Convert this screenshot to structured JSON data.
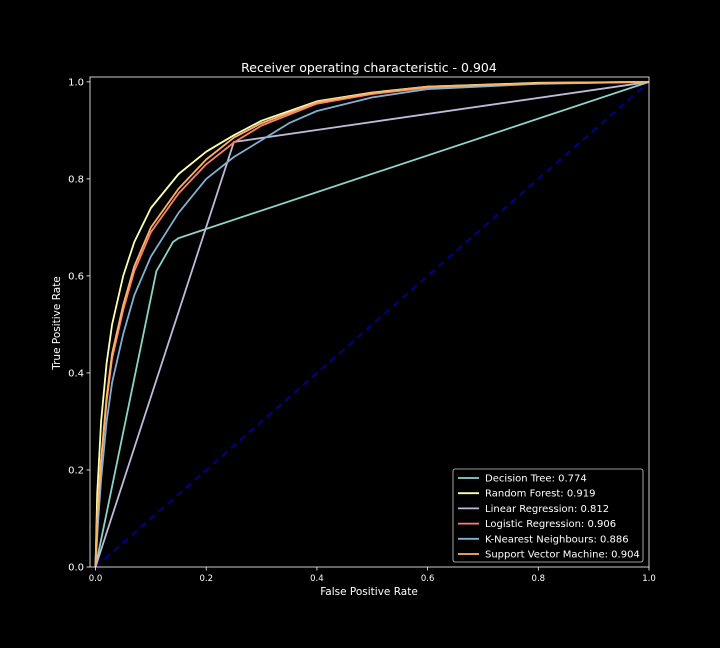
{
  "chart_data": {
    "type": "line",
    "title": "Receiver operating characteristic - 0.904",
    "xlabel": "False Positive Rate",
    "ylabel": "True Positive Rate",
    "xlim": [
      -0.01,
      1.0
    ],
    "ylim": [
      0.0,
      1.01
    ],
    "x_ticks": [
      "0.0",
      "0.2",
      "0.4",
      "0.6",
      "0.8",
      "1.0"
    ],
    "y_ticks": [
      "0.0",
      "0.2",
      "0.4",
      "0.6",
      "0.8",
      "1.0"
    ],
    "grid": false,
    "legend_position": "lower-right",
    "background": "#000000",
    "diagonal": {
      "color": "#00008b",
      "style": "dashed",
      "points": [
        [
          0,
          0
        ],
        [
          1,
          1
        ]
      ]
    },
    "series": [
      {
        "name": "Decision Tree: 0.774",
        "color": "#8dd3c7",
        "points": [
          [
            0,
            0
          ],
          [
            0.11,
            0.61
          ],
          [
            0.12,
            0.63
          ],
          [
            0.13,
            0.65
          ],
          [
            0.14,
            0.67
          ],
          [
            0.15,
            0.678
          ],
          [
            1,
            1
          ]
        ]
      },
      {
        "name": "Random Forest: 0.919",
        "color": "#ffffb3",
        "points": [
          [
            0,
            0
          ],
          [
            0.003,
            0.15
          ],
          [
            0.01,
            0.3
          ],
          [
            0.02,
            0.42
          ],
          [
            0.03,
            0.5
          ],
          [
            0.05,
            0.6
          ],
          [
            0.07,
            0.67
          ],
          [
            0.1,
            0.74
          ],
          [
            0.15,
            0.81
          ],
          [
            0.2,
            0.856
          ],
          [
            0.25,
            0.89
          ],
          [
            0.3,
            0.92
          ],
          [
            0.4,
            0.96
          ],
          [
            0.5,
            0.978
          ],
          [
            0.6,
            0.99
          ],
          [
            0.8,
            0.998
          ],
          [
            1,
            1
          ]
        ]
      },
      {
        "name": "Linear Regression: 0.812",
        "color": "#bebada",
        "points": [
          [
            0,
            0
          ],
          [
            0.25,
            0.876
          ],
          [
            1,
            1
          ]
        ]
      },
      {
        "name": "Logistic Regression: 0.906",
        "color": "#fb8072",
        "points": [
          [
            0,
            0
          ],
          [
            0.003,
            0.1
          ],
          [
            0.01,
            0.22
          ],
          [
            0.02,
            0.34
          ],
          [
            0.03,
            0.43
          ],
          [
            0.05,
            0.53
          ],
          [
            0.07,
            0.61
          ],
          [
            0.1,
            0.69
          ],
          [
            0.15,
            0.77
          ],
          [
            0.2,
            0.83
          ],
          [
            0.25,
            0.875
          ],
          [
            0.3,
            0.91
          ],
          [
            0.4,
            0.955
          ],
          [
            0.5,
            0.975
          ],
          [
            0.6,
            0.988
          ],
          [
            0.8,
            0.997
          ],
          [
            1,
            1
          ]
        ]
      },
      {
        "name": "K-Nearest Neighbours: 0.886",
        "color": "#80b1d3",
        "points": [
          [
            0,
            0
          ],
          [
            0.005,
            0.1
          ],
          [
            0.01,
            0.18
          ],
          [
            0.02,
            0.3
          ],
          [
            0.03,
            0.38
          ],
          [
            0.05,
            0.48
          ],
          [
            0.07,
            0.56
          ],
          [
            0.1,
            0.64
          ],
          [
            0.15,
            0.73
          ],
          [
            0.2,
            0.8
          ],
          [
            0.25,
            0.845
          ],
          [
            0.3,
            0.88
          ],
          [
            0.35,
            0.915
          ],
          [
            0.4,
            0.94
          ],
          [
            0.5,
            0.968
          ],
          [
            0.6,
            0.985
          ],
          [
            0.8,
            0.996
          ],
          [
            1,
            1
          ]
        ]
      },
      {
        "name": "Support Vector Machine: 0.904",
        "color": "#fdb462",
        "points": [
          [
            0,
            0
          ],
          [
            0.003,
            0.1
          ],
          [
            0.01,
            0.22
          ],
          [
            0.02,
            0.35
          ],
          [
            0.03,
            0.44
          ],
          [
            0.05,
            0.54
          ],
          [
            0.07,
            0.62
          ],
          [
            0.1,
            0.7
          ],
          [
            0.15,
            0.78
          ],
          [
            0.2,
            0.84
          ],
          [
            0.25,
            0.885
          ],
          [
            0.3,
            0.915
          ],
          [
            0.4,
            0.958
          ],
          [
            0.5,
            0.977
          ],
          [
            0.6,
            0.99
          ],
          [
            0.8,
            0.997
          ],
          [
            1,
            1
          ]
        ]
      }
    ]
  }
}
